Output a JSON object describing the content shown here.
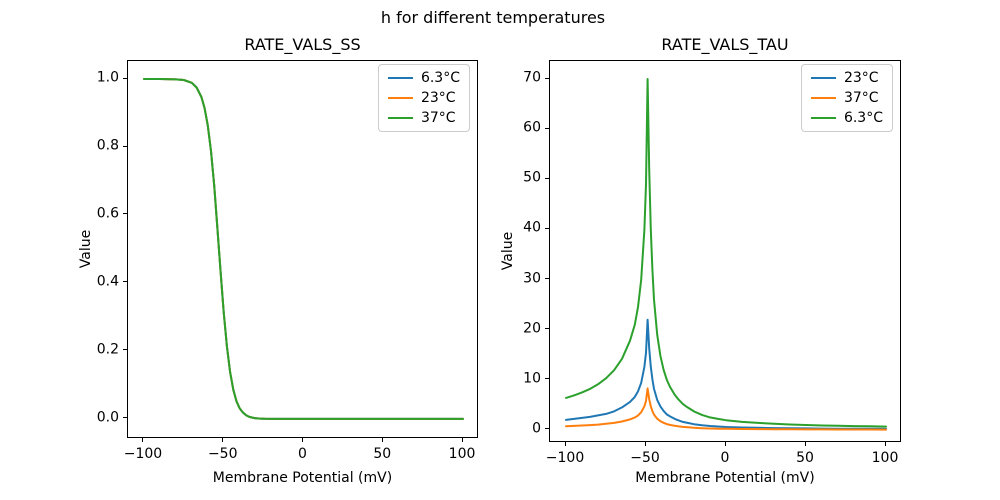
{
  "figure": {
    "suptitle": "h for different temperatures",
    "background": "#ffffff",
    "spine_color": "#000000"
  },
  "palette": {
    "blue": "#1f77b4",
    "orange": "#ff7f0e",
    "green": "#2ca02c"
  },
  "chart_data": [
    {
      "type": "line",
      "title": "RATE_VALS_SS",
      "xlabel": "Membrane Potential (mV)",
      "ylabel": "Value",
      "xlim": [
        -110,
        110
      ],
      "ylim": [
        -0.059,
        1.053
      ],
      "xticks": [
        -100,
        -50,
        0,
        50,
        100
      ],
      "xtick_labels": [
        "−100",
        "−50",
        "0",
        "50",
        "100"
      ],
      "yticks": [
        0.0,
        0.2,
        0.4,
        0.6,
        0.8,
        1.0
      ],
      "ytick_labels": [
        "0.0",
        "0.2",
        "0.4",
        "0.6",
        "0.8",
        "1.0"
      ],
      "legend_position": "upper right",
      "grid": false,
      "x": [
        -100,
        -90,
        -80,
        -75,
        -70,
        -67,
        -64,
        -62,
        -60,
        -58,
        -56,
        -54,
        -52,
        -50,
        -48,
        -46,
        -44,
        -42,
        -40,
        -38,
        -36,
        -34,
        -32,
        -30,
        -27,
        -24,
        -20,
        -15,
        -10,
        0,
        20,
        40,
        60,
        80,
        100
      ],
      "series": [
        {
          "name": "6.3°C",
          "color": "#1f77b4",
          "values": [
            1.0,
            1.0,
            0.999,
            0.997,
            0.989,
            0.975,
            0.947,
            0.914,
            0.863,
            0.788,
            0.687,
            0.565,
            0.437,
            0.314,
            0.214,
            0.138,
            0.086,
            0.052,
            0.031,
            0.019,
            0.011,
            0.006,
            0.004,
            0.002,
            0.001,
            0.0005,
            0.0002,
            0.0001,
            0,
            0,
            0,
            0,
            0,
            0,
            0
          ]
        },
        {
          "name": "23°C",
          "color": "#ff7f0e",
          "values": [
            1.0,
            1.0,
            0.999,
            0.997,
            0.989,
            0.975,
            0.947,
            0.914,
            0.863,
            0.788,
            0.687,
            0.565,
            0.437,
            0.314,
            0.214,
            0.138,
            0.086,
            0.052,
            0.031,
            0.019,
            0.011,
            0.006,
            0.004,
            0.002,
            0.001,
            0.0005,
            0.0002,
            0.0001,
            0,
            0,
            0,
            0,
            0,
            0,
            0
          ]
        },
        {
          "name": "37°C",
          "color": "#2ca02c",
          "values": [
            1.0,
            1.0,
            0.999,
            0.997,
            0.989,
            0.975,
            0.947,
            0.914,
            0.863,
            0.788,
            0.687,
            0.565,
            0.437,
            0.314,
            0.214,
            0.138,
            0.086,
            0.052,
            0.031,
            0.019,
            0.011,
            0.006,
            0.004,
            0.002,
            0.001,
            0.0005,
            0.0002,
            0.0001,
            0,
            0,
            0,
            0,
            0,
            0,
            0
          ]
        }
      ]
    },
    {
      "type": "line",
      "title": "RATE_VALS_TAU",
      "xlabel": "Membrane Potential (mV)",
      "ylabel": "Value",
      "xlim": [
        -110,
        110
      ],
      "ylim": [
        -2.6,
        73.6
      ],
      "xticks": [
        -100,
        -50,
        0,
        50,
        100
      ],
      "xtick_labels": [
        "−100",
        "−50",
        "0",
        "50",
        "100"
      ],
      "yticks": [
        0,
        10,
        20,
        30,
        40,
        50,
        60,
        70
      ],
      "ytick_labels": [
        "0",
        "10",
        "20",
        "30",
        "40",
        "50",
        "60",
        "70"
      ],
      "legend_position": "upper right",
      "grid": false,
      "x": [
        -100,
        -95,
        -90,
        -85,
        -80,
        -75,
        -70,
        -65,
        -60,
        -57,
        -55,
        -53,
        -51,
        -50,
        -49,
        -48,
        -47,
        -46,
        -45,
        -43,
        -41,
        -39,
        -37,
        -35,
        -32,
        -30,
        -27,
        -24,
        -20,
        -15,
        -10,
        -5,
        0,
        10,
        20,
        30,
        40,
        50,
        60,
        70,
        80,
        90,
        100
      ],
      "series": [
        {
          "name": "23°C",
          "color": "#1f77b4",
          "values": [
            2.0,
            2.2,
            2.4,
            2.6,
            2.9,
            3.2,
            3.7,
            4.5,
            5.6,
            6.6,
            7.7,
            9.4,
            12.6,
            15.4,
            22.0,
            16.3,
            12.6,
            10.1,
            8.2,
            6.0,
            4.7,
            3.8,
            3.1,
            2.7,
            2.2,
            1.95,
            1.6,
            1.4,
            1.15,
            0.95,
            0.8,
            0.7,
            0.6,
            0.5,
            0.44,
            0.38,
            0.35,
            0.31,
            0.28,
            0.26,
            0.24,
            0.23,
            0.21
          ]
        },
        {
          "name": "37°C",
          "color": "#ff7f0e",
          "values": [
            0.76,
            0.81,
            0.89,
            0.97,
            1.07,
            1.22,
            1.4,
            1.68,
            2.1,
            2.48,
            2.89,
            3.54,
            4.72,
            5.78,
            8.3,
            6.14,
            4.72,
            3.78,
            3.07,
            2.24,
            1.75,
            1.42,
            1.18,
            1.01,
            0.83,
            0.73,
            0.61,
            0.53,
            0.44,
            0.35,
            0.3,
            0.26,
            0.23,
            0.19,
            0.17,
            0.14,
            0.13,
            0.12,
            0.11,
            0.1,
            0.09,
            0.086,
            0.08
          ]
        },
        {
          "name": "6.3°C",
          "color": "#2ca02c",
          "values": [
            6.4,
            6.9,
            7.5,
            8.2,
            9.1,
            10.3,
            11.9,
            14.2,
            17.8,
            21.0,
            24.5,
            30.0,
            40.0,
            49.0,
            70.0,
            52.0,
            40.0,
            32.0,
            26.0,
            19.0,
            14.8,
            12.0,
            10.0,
            8.6,
            7.0,
            6.2,
            5.2,
            4.5,
            3.7,
            3.0,
            2.5,
            2.2,
            1.95,
            1.6,
            1.4,
            1.22,
            1.1,
            1.0,
            0.9,
            0.84,
            0.78,
            0.73,
            0.68
          ]
        }
      ]
    }
  ]
}
